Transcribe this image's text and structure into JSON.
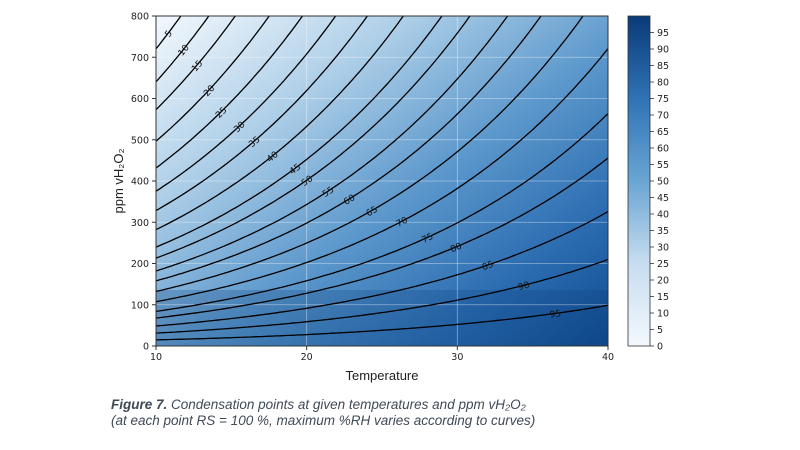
{
  "chart_data": {
    "type": "heatmap",
    "xlabel": "Temperature",
    "ylabel": "ppm vH₂O₂",
    "xlim": [
      10,
      40
    ],
    "ylim": [
      0,
      800
    ],
    "x_ticks": [
      "10",
      "20",
      "30",
      "40"
    ],
    "y_ticks": [
      "0",
      "100",
      "200",
      "300",
      "400",
      "500",
      "600",
      "700",
      "800"
    ],
    "grid": true,
    "colormap": {
      "low": "#f2f7fc",
      "high": "#0b3e7d"
    },
    "colorbar": {
      "range": [
        0,
        100
      ],
      "ticks": [
        "0",
        "5",
        "10",
        "15",
        "20",
        "25",
        "30",
        "35",
        "40",
        "45",
        "50",
        "55",
        "60",
        "65",
        "70",
        "75",
        "80",
        "85",
        "90",
        "95"
      ]
    },
    "contour_levels": [
      5,
      10,
      15,
      20,
      25,
      30,
      35,
      40,
      45,
      50,
      55,
      60,
      65,
      70,
      75,
      80,
      85,
      90,
      95
    ],
    "contour_labels": [
      {
        "level": "5",
        "x": 10.8,
        "y": 758
      },
      {
        "level": "10",
        "x": 11.8,
        "y": 718
      },
      {
        "level": "15",
        "x": 12.7,
        "y": 680
      },
      {
        "level": "20",
        "x": 13.5,
        "y": 620
      },
      {
        "level": "25",
        "x": 14.3,
        "y": 567
      },
      {
        "level": "30",
        "x": 15.5,
        "y": 532
      },
      {
        "level": "35",
        "x": 16.5,
        "y": 496
      },
      {
        "level": "40",
        "x": 17.7,
        "y": 460
      },
      {
        "level": "45",
        "x": 19.2,
        "y": 430
      },
      {
        "level": "50",
        "x": 20.0,
        "y": 402
      },
      {
        "level": "55",
        "x": 21.4,
        "y": 375
      },
      {
        "level": "60",
        "x": 22.8,
        "y": 356
      },
      {
        "level": "65",
        "x": 24.3,
        "y": 328
      },
      {
        "level": "70",
        "x": 26.3,
        "y": 302
      },
      {
        "level": "75",
        "x": 28.0,
        "y": 263
      },
      {
        "level": "80",
        "x": 29.9,
        "y": 240
      },
      {
        "level": "85",
        "x": 32.0,
        "y": 196
      },
      {
        "level": "90",
        "x": 34.4,
        "y": 147
      },
      {
        "level": "95",
        "x": 36.5,
        "y": 79
      }
    ]
  },
  "caption": {
    "figure_label": "Figure 7.",
    "line1": " Condensation points at given temperatures and ppm vH₂O₂",
    "line2": "(at each point RS = 100 %, maximum %RH varies according to curves)"
  }
}
